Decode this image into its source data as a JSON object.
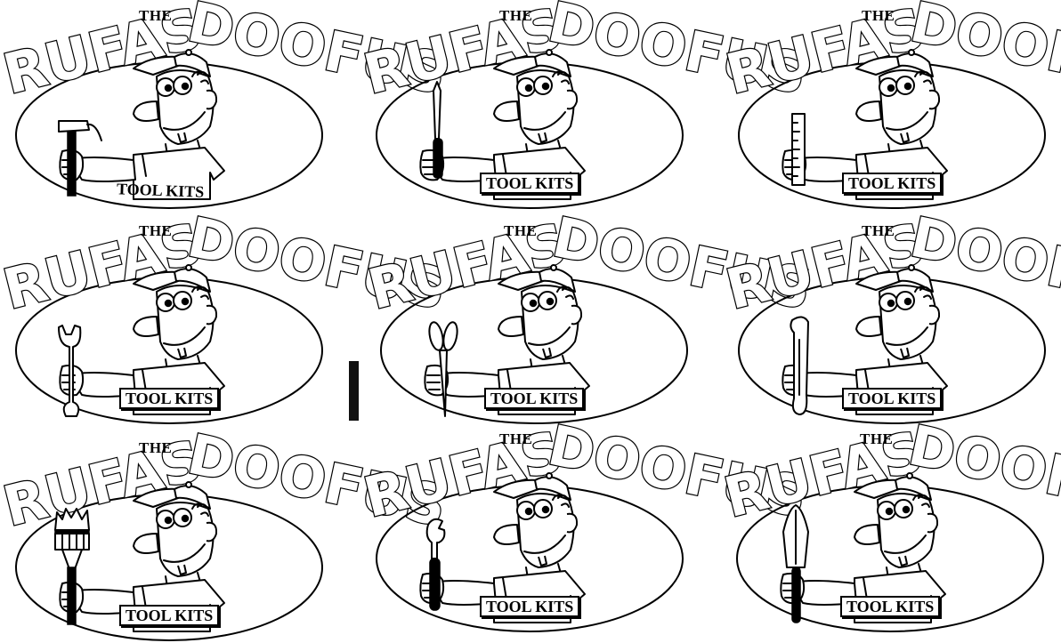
{
  "logo": {
    "word_1": "RUFAS",
    "the": "THE",
    "word_2": "DOOFUS",
    "badge": "TOOL KITS"
  },
  "variants": [
    {
      "tool": "hammer",
      "label_style": "plain",
      "expression": "grin"
    },
    {
      "tool": "screwdriver",
      "label_style": "boxed",
      "expression": "tongue-out"
    },
    {
      "tool": "ruler",
      "label_style": "boxed",
      "expression": "smile"
    },
    {
      "tool": "wrench",
      "label_style": "boxed",
      "expression": "grin"
    },
    {
      "tool": "scissors",
      "label_style": "boxed",
      "expression": "buck-tooth"
    },
    {
      "tool": "pipe",
      "label_style": "boxed",
      "expression": "big-grin"
    },
    {
      "tool": "paintbrush",
      "label_style": "boxed",
      "expression": "buck-tooth"
    },
    {
      "tool": "adjustable-wrench",
      "label_style": "boxed",
      "expression": "buck-tooth"
    },
    {
      "tool": "trowel",
      "label_style": "boxed",
      "expression": "big-grin"
    }
  ],
  "colors": {
    "ink": "#000000",
    "paper": "#ffffff"
  }
}
